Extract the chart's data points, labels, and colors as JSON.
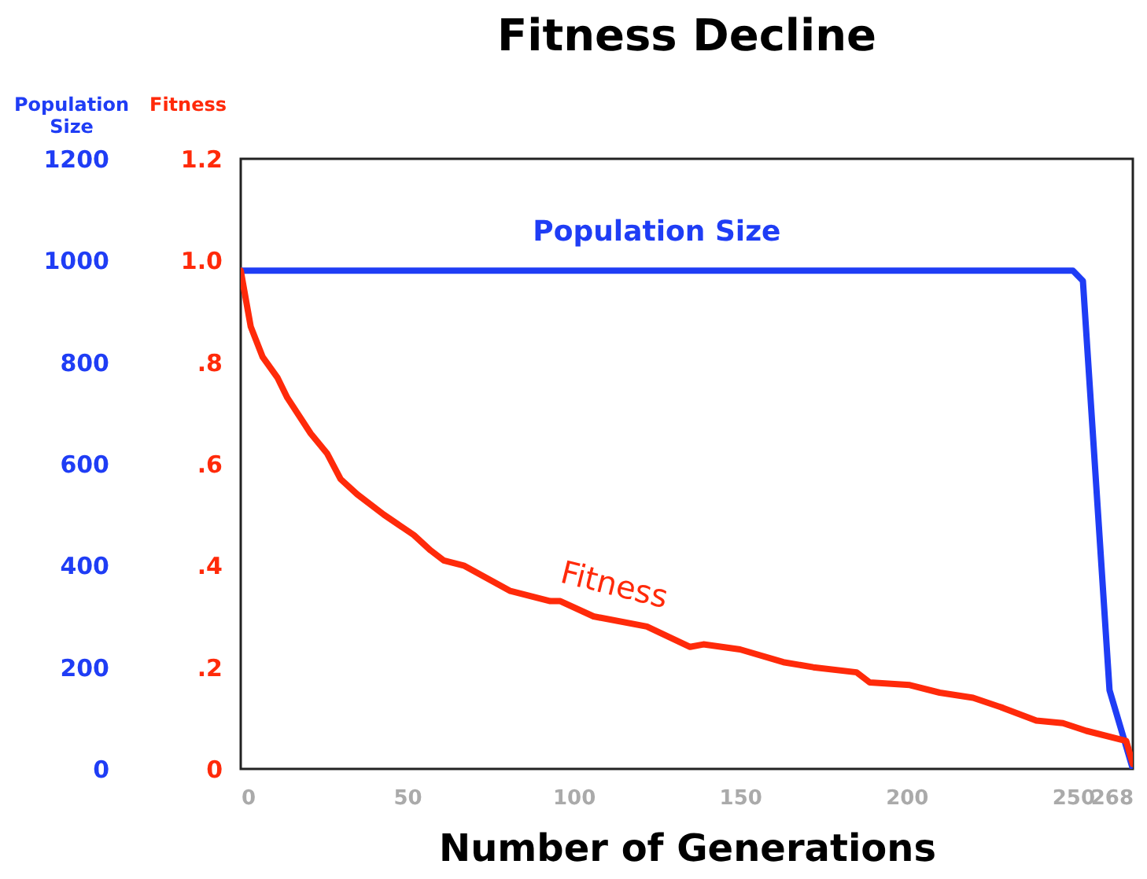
{
  "chart_data": {
    "type": "line",
    "title": "Fitness Decline",
    "xlabel": "Number of Generations",
    "ylabel": "Population Size",
    "y2label": "Fitness",
    "xlim": [
      0,
      268
    ],
    "xticks": [
      0,
      50,
      100,
      150,
      200,
      250,
      268
    ],
    "ylim": [
      0,
      1200
    ],
    "yticks": [
      0,
      200,
      400,
      600,
      800,
      1000,
      1200
    ],
    "y2lim": [
      0,
      1.2
    ],
    "y2ticks": [
      {
        "value": 0,
        "label": "0"
      },
      {
        "value": 0.2,
        "label": ".2"
      },
      {
        "value": 0.4,
        "label": ".4"
      },
      {
        "value": 0.6,
        "label": ".6"
      },
      {
        "value": 0.8,
        "label": ".8"
      },
      {
        "value": 1,
        "label": "1.0"
      },
      {
        "value": 1.2,
        "label": "1.2"
      }
    ],
    "grid": false,
    "series": [
      {
        "name": "Population Size",
        "color": "#1f3df5",
        "x": [
          0,
          250,
          253,
          261,
          268
        ],
        "values": [
          980,
          980,
          960,
          155,
          0
        ]
      },
      {
        "name": "Fitness",
        "color": "#ff2a0a",
        "axis": "y2",
        "x": [
          0,
          3,
          6.6,
          11,
          14,
          21,
          26,
          30,
          35,
          43,
          52,
          57,
          61,
          67,
          81,
          93,
          96,
          106,
          122,
          135,
          139,
          150,
          163,
          172,
          185,
          189,
          201,
          210,
          220,
          229,
          239,
          247,
          254,
          266,
          268
        ],
        "values": [
          0.98,
          0.87,
          0.81,
          0.77,
          0.73,
          0.66,
          0.62,
          0.57,
          0.54,
          0.5,
          0.46,
          0.43,
          0.41,
          0.4,
          0.35,
          0.33,
          0.33,
          0.3,
          0.28,
          0.24,
          0.245,
          0.235,
          0.21,
          0.2,
          0.19,
          0.17,
          0.165,
          0.15,
          0.14,
          0.12,
          0.095,
          0.09,
          0.075,
          0.055,
          0.01
        ]
      }
    ]
  }
}
